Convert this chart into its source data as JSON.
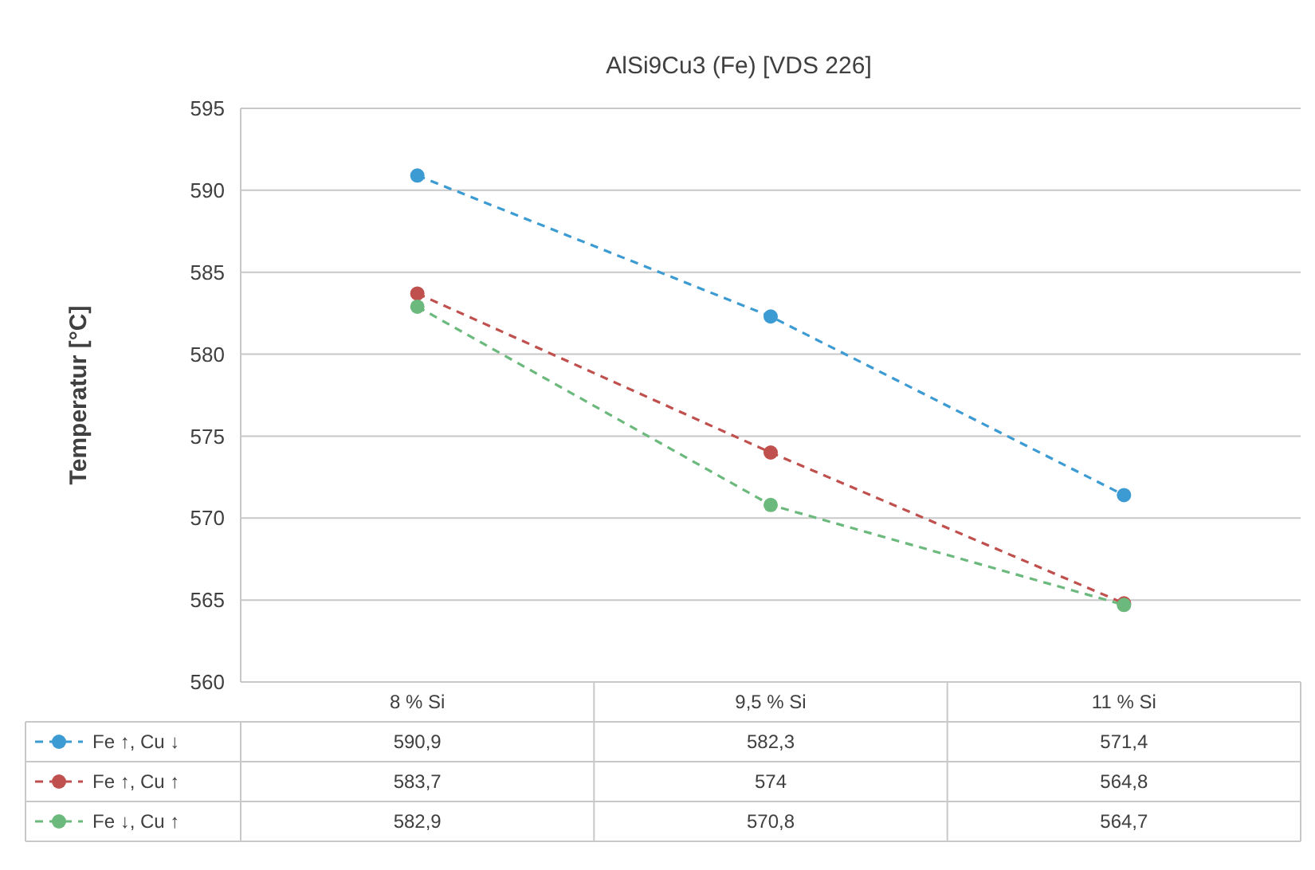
{
  "chart_data": {
    "type": "line",
    "title": "AlSi9Cu3 (Fe) [VDS 226]",
    "ylabel": "Temperatur [°C]",
    "categories": [
      "8 % Si",
      "9,5 % Si",
      "11 % Si"
    ],
    "series": [
      {
        "name": "Fe ↑, Cu ↓",
        "color": "#3c9bd2",
        "values": [
          590.9,
          582.3,
          571.4
        ],
        "value_labels": [
          "590,9",
          "582,3",
          "571,4"
        ]
      },
      {
        "name": "Fe ↑, Cu ↑",
        "color": "#c0504d",
        "values": [
          583.7,
          574,
          564.8
        ],
        "value_labels": [
          "583,7",
          "574",
          "564,8"
        ]
      },
      {
        "name": "Fe ↓, Cu ↑",
        "color": "#6bb97c",
        "values": [
          582.9,
          570.8,
          564.7
        ],
        "value_labels": [
          "582,9",
          "570,8",
          "564,7"
        ]
      }
    ],
    "ylim": [
      560,
      595
    ],
    "yticks": [
      560,
      565,
      570,
      575,
      580,
      585,
      590,
      595
    ],
    "grid": "y",
    "legend": "bottom",
    "marker": "circle",
    "line_style": "dashed"
  }
}
